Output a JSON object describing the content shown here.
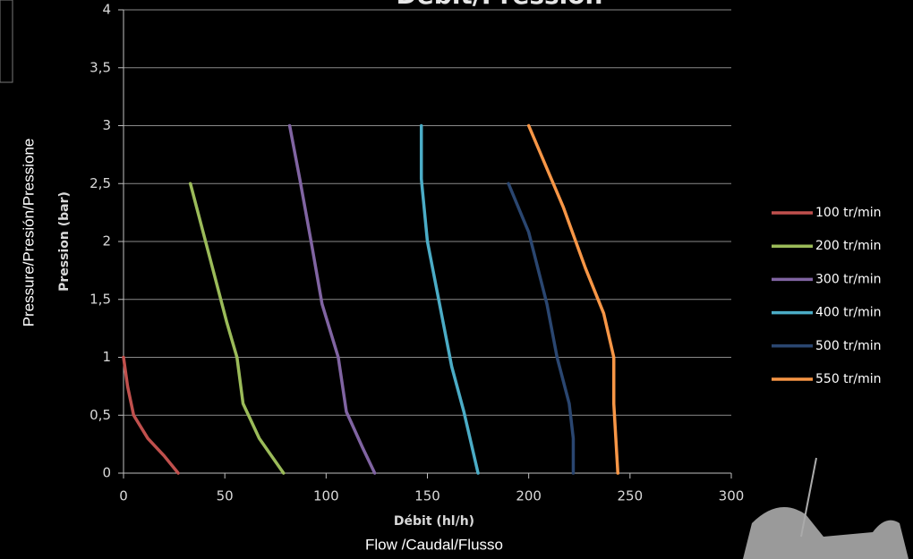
{
  "chart_data": {
    "type": "line",
    "title": "Débit/Pression",
    "x_label": "Débit (hl/h)",
    "y_label": "Pression (bar)",
    "x_caption": "Flow /Caudal/Flusso",
    "y_caption": "Pressure/Presión/Pressione",
    "xlim": [
      0,
      300
    ],
    "ylim": [
      0,
      4
    ],
    "xticks": [
      0,
      50,
      100,
      150,
      200,
      250,
      300
    ],
    "yticks": [
      0,
      {
        "value": 0.5,
        "label": "0,5"
      },
      1,
      {
        "value": 1.5,
        "label": "1,5"
      },
      2,
      {
        "value": 2.5,
        "label": "2,5"
      },
      3,
      {
        "value": 3.5,
        "label": "3,5"
      },
      4
    ],
    "grid": true,
    "legend": "right",
    "series": [
      {
        "name": "100 tr/min",
        "color": "#c0504d",
        "x": [
          0,
          2,
          5,
          12,
          20,
          27
        ],
        "values": [
          1,
          0.75,
          0.5,
          0.3,
          0.15,
          0
        ]
      },
      {
        "name": "200 tr/min",
        "color": "#9bbb59",
        "x": [
          33,
          39,
          45,
          51,
          56,
          59,
          67,
          79
        ],
        "values": [
          2.5,
          2.1,
          1.7,
          1.3,
          1.0,
          0.6,
          0.3,
          0
        ]
      },
      {
        "name": "300 tr/min",
        "color": "#8064a2",
        "x": [
          82,
          87,
          93,
          98,
          106,
          110,
          118,
          124
        ],
        "values": [
          3,
          2.54,
          1.96,
          1.46,
          1.0,
          0.53,
          0.22,
          0
        ]
      },
      {
        "name": "400 tr/min",
        "color": "#4bacc6",
        "x": [
          147,
          147,
          150,
          156,
          162,
          168,
          175
        ],
        "values": [
          3,
          2.54,
          2.0,
          1.46,
          0.92,
          0.53,
          0
        ]
      },
      {
        "name": "500 tr/min",
        "color": "#2a4670",
        "x": [
          190,
          200,
          209,
          214,
          220,
          222,
          222
        ],
        "values": [
          2.5,
          2.08,
          1.46,
          1.0,
          0.6,
          0.3,
          0
        ]
      },
      {
        "name": "550 tr/min",
        "color": "#f79646",
        "x": [
          200,
          217,
          228,
          237,
          242,
          242,
          243,
          244
        ],
        "values": [
          3,
          2.3,
          1.77,
          1.38,
          1.0,
          0.6,
          0.3,
          0
        ]
      }
    ]
  }
}
